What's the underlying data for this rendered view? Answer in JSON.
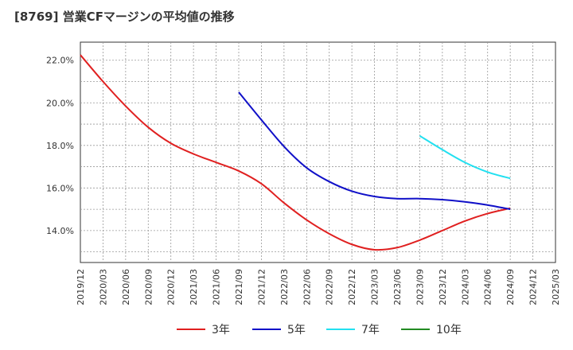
{
  "title": "[8769]  営業CFマージンの平均値の推移",
  "chart_data": {
    "type": "line",
    "title": "[8769]  営業CFマージンの平均値の推移",
    "xlabel": "",
    "ylabel": "",
    "x_ticks": [
      "2019/12",
      "2020/03",
      "2020/06",
      "2020/09",
      "2020/12",
      "2021/03",
      "2021/06",
      "2021/09",
      "2021/12",
      "2022/03",
      "2022/06",
      "2022/09",
      "2022/12",
      "2023/03",
      "2023/06",
      "2023/09",
      "2023/12",
      "2024/03",
      "2024/06",
      "2024/09",
      "2024/12",
      "2025/03"
    ],
    "y_ticks": [
      14.0,
      16.0,
      18.0,
      20.0,
      22.0
    ],
    "y_tick_labels": [
      "14.0%",
      "16.0%",
      "18.0%",
      "20.0%",
      "22.0%"
    ],
    "ylim": [
      12.5,
      22.85
    ],
    "grid": true,
    "legend_position": "bottom",
    "series": [
      {
        "name": "3年",
        "color": "#e02020",
        "x": [
          "2019/12",
          "2020/03",
          "2020/06",
          "2020/09",
          "2020/12",
          "2021/03",
          "2021/06",
          "2021/09",
          "2021/12",
          "2022/03",
          "2022/06",
          "2022/09",
          "2022/12",
          "2023/03",
          "2023/06",
          "2023/09",
          "2023/12",
          "2024/03",
          "2024/06",
          "2024/09"
        ],
        "values": [
          22.25,
          21.0,
          19.85,
          18.85,
          18.1,
          17.6,
          17.2,
          16.8,
          16.2,
          15.3,
          14.5,
          13.85,
          13.35,
          13.1,
          13.2,
          13.55,
          14.0,
          14.45,
          14.8,
          15.05
        ]
      },
      {
        "name": "5年",
        "color": "#1010c8",
        "x": [
          "2021/09",
          "2021/12",
          "2022/03",
          "2022/06",
          "2022/09",
          "2022/12",
          "2023/03",
          "2023/06",
          "2023/09",
          "2023/12",
          "2024/03",
          "2024/06",
          "2024/09"
        ],
        "values": [
          20.5,
          19.2,
          17.95,
          16.95,
          16.3,
          15.85,
          15.6,
          15.5,
          15.5,
          15.45,
          15.35,
          15.2,
          15.0
        ]
      },
      {
        "name": "7年",
        "color": "#22e0f0",
        "x": [
          "2023/09",
          "2023/12",
          "2024/03",
          "2024/06",
          "2024/09"
        ],
        "values": [
          18.45,
          17.8,
          17.2,
          16.75,
          16.45
        ]
      },
      {
        "name": "10年",
        "color": "#228b22",
        "x": [],
        "values": []
      }
    ]
  }
}
